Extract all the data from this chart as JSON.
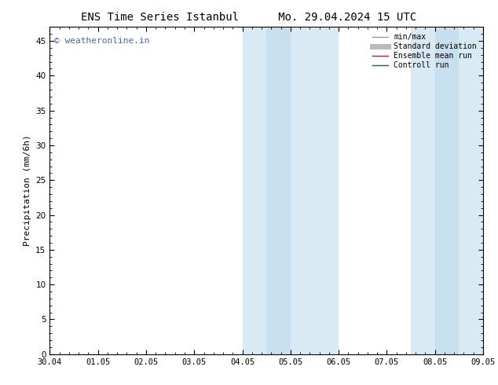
{
  "title_left": "ENS Time Series Istanbul",
  "title_right": "Mo. 29.04.2024 15 UTC",
  "ylabel": "Precipitation (mm/6h)",
  "xlabel_ticks": [
    "30.04",
    "01.05",
    "02.05",
    "03.05",
    "04.05",
    "05.05",
    "06.05",
    "07.05",
    "08.05",
    "09.05"
  ],
  "ylim": [
    0,
    47
  ],
  "yticks": [
    0,
    5,
    10,
    15,
    20,
    25,
    30,
    35,
    40,
    45
  ],
  "background_color": "#ffffff",
  "plot_bg_color": "#ffffff",
  "shaded_regions": [
    {
      "xstart": 4.0,
      "xend": 4.5,
      "color": "#daeaf5"
    },
    {
      "xstart": 4.5,
      "xend": 5.0,
      "color": "#c8dff0"
    },
    {
      "xstart": 5.0,
      "xend": 6.0,
      "color": "#daeaf5"
    },
    {
      "xstart": 7.5,
      "xend": 8.0,
      "color": "#daeaf5"
    },
    {
      "xstart": 8.0,
      "xend": 8.5,
      "color": "#c8dff0"
    },
    {
      "xstart": 8.5,
      "xend": 9.0,
      "color": "#daeaf5"
    }
  ],
  "watermark_text": "© weatheronline.in",
  "watermark_color": "#4466cc",
  "watermark_fontsize": 8,
  "legend_entries": [
    {
      "label": "min/max",
      "color": "#999999",
      "lw": 1.0,
      "style": "solid"
    },
    {
      "label": "Standard deviation",
      "color": "#bbbbbb",
      "lw": 5,
      "style": "solid"
    },
    {
      "label": "Ensemble mean run",
      "color": "#ff0000",
      "lw": 1.0,
      "style": "solid"
    },
    {
      "label": "Controll run",
      "color": "#008000",
      "lw": 1.0,
      "style": "solid"
    }
  ],
  "title_fontsize": 10,
  "tick_fontsize": 7.5,
  "ylabel_fontsize": 8
}
